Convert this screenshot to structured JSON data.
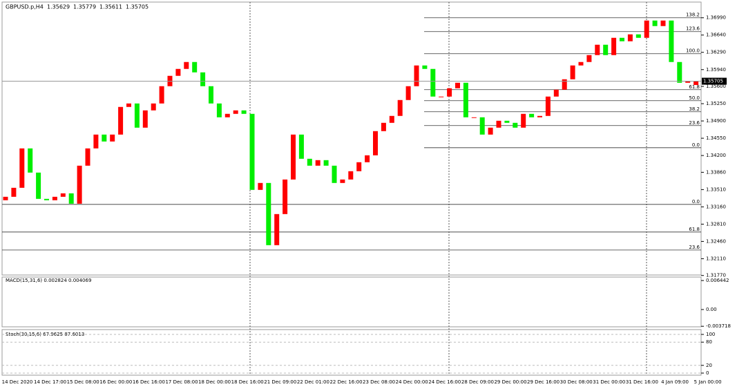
{
  "header": {
    "symbol": "GBPUSD.p,H4",
    "ohlc": [
      "1.35629",
      "1.35779",
      "1.35611",
      "1.35705"
    ]
  },
  "chart_data": {
    "type": "candlestick",
    "ylim": [
      1.3178,
      1.3735
    ],
    "yticks": [
      {
        "value": 1.3699,
        "label": "1.36990"
      },
      {
        "value": 1.3664,
        "label": "1.36640"
      },
      {
        "value": 1.3629,
        "label": "1.36290"
      },
      {
        "value": 1.3594,
        "label": "1.35940"
      },
      {
        "value": 1.356,
        "label": "1.35600"
      },
      {
        "value": 1.3525,
        "label": "1.35250"
      },
      {
        "value": 1.349,
        "label": "1.34900"
      },
      {
        "value": 1.3455,
        "label": "1.34550"
      },
      {
        "value": 1.342,
        "label": "1.34200"
      },
      {
        "value": 1.3386,
        "label": "1.33860"
      },
      {
        "value": 1.3351,
        "label": "1.33510"
      },
      {
        "value": 1.3316,
        "label": "1.33160"
      },
      {
        "value": 1.3281,
        "label": "1.32810"
      },
      {
        "value": 1.3246,
        "label": "1.32460"
      },
      {
        "value": 1.3211,
        "label": "1.32110"
      },
      {
        "value": 1.3177,
        "label": "1.31770"
      }
    ],
    "current_price": {
      "value": 1.35705,
      "label": "1.35705"
    },
    "up_color": "#ff0000",
    "down_color": "#00ee00",
    "open": [
      1.33294,
      1.33364,
      1.33546,
      1.34344,
      1.33854,
      1.33322,
      1.33294,
      1.33364,
      1.33434,
      1.33224,
      1.33994,
      1.34344,
      1.34624,
      1.34484,
      1.34624,
      1.35184,
      1.35254,
      1.34764,
      1.35114,
      1.35254,
      1.35604,
      1.35814,
      1.35954,
      1.36094,
      1.35884,
      1.35604,
      1.35254,
      1.34974,
      1.35044,
      1.35114,
      1.35044,
      1.33504,
      1.33644,
      1.32384,
      1.33014,
      1.33714,
      1.34624,
      1.34134,
      1.33994,
      1.34106,
      1.33994,
      1.33644,
      1.33714,
      1.33882,
      1.34064,
      1.34204,
      1.34694,
      1.34862,
      1.35002,
      1.35324,
      1.35604,
      1.36024,
      1.35954,
      1.35394,
      1.35394,
      1.35562,
      1.35674,
      1.34974,
      1.34974,
      1.34624,
      1.34764,
      1.34904,
      1.34862,
      1.34764,
      1.35044,
      1.34974,
      1.35002,
      1.35394,
      1.35534,
      1.35744,
      1.36024,
      1.36094,
      1.36234,
      1.36444,
      1.36234,
      1.36584,
      1.36514,
      1.36654,
      1.36584,
      1.36934,
      1.36822,
      1.36934,
      1.36094,
      1.35674,
      1.35629
    ],
    "close": [
      1.33364,
      1.33546,
      1.34344,
      1.33854,
      1.33322,
      1.33294,
      1.33364,
      1.33434,
      1.33224,
      1.33994,
      1.34344,
      1.34624,
      1.34484,
      1.34624,
      1.35184,
      1.35254,
      1.34764,
      1.35114,
      1.35254,
      1.35604,
      1.35814,
      1.35954,
      1.36094,
      1.35884,
      1.35604,
      1.35254,
      1.34974,
      1.35044,
      1.35114,
      1.35044,
      1.33504,
      1.33644,
      1.32384,
      1.33014,
      1.33714,
      1.34624,
      1.34134,
      1.33994,
      1.34106,
      1.33994,
      1.33644,
      1.33714,
      1.33882,
      1.34064,
      1.34204,
      1.34694,
      1.34862,
      1.35002,
      1.35324,
      1.35604,
      1.36024,
      1.35954,
      1.35394,
      1.35394,
      1.35562,
      1.35674,
      1.34974,
      1.34974,
      1.34624,
      1.34764,
      1.34904,
      1.34862,
      1.34764,
      1.35044,
      1.34974,
      1.35002,
      1.35394,
      1.35534,
      1.35744,
      1.36024,
      1.36094,
      1.36234,
      1.36444,
      1.36234,
      1.36584,
      1.36514,
      1.36654,
      1.36584,
      1.36934,
      1.36822,
      1.36934,
      1.36094,
      1.35674,
      1.35702,
      1.35705
    ],
    "fib_levels": [
      {
        "value": 1.3699,
        "label": "138.2"
      },
      {
        "value": 1.3671,
        "label": "123.6"
      },
      {
        "value": 1.36262,
        "label": "100.0"
      },
      {
        "value": 1.35534,
        "label": "61.8"
      },
      {
        "value": 1.3531,
        "label": "50.0"
      },
      {
        "value": 1.35086,
        "label": "38.2"
      },
      {
        "value": 1.34806,
        "label": "23.6"
      },
      {
        "value": 1.34358,
        "label": "0.0"
      },
      {
        "value": 1.3321,
        "label": "0.0"
      },
      {
        "value": 1.3265,
        "label": "61.8"
      },
      {
        "value": 1.32286,
        "label": "23.6"
      }
    ],
    "x_labels": [
      "14 Dec 2020",
      "14 Dec 17:00",
      "15 Dec 08:00",
      "16 Dec 00:00",
      "16 Dec 16:00",
      "17 Dec 08:00",
      "18 Dec 00:00",
      "18 Dec 16:00",
      "21 Dec 09:00",
      "22 Dec 01:00",
      "22 Dec 16:00",
      "23 Dec 08:00",
      "24 Dec 00:00",
      "24 Dec 16:00",
      "28 Dec 09:00",
      "29 Dec 00:00",
      "29 Dec 16:00",
      "30 Dec 08:00",
      "31 Dec 00:00",
      "31 Dec 16:00",
      "4 Jan 09:00",
      "5 Jan 00:00"
    ],
    "macd": {
      "label": "MACD(15,31,6) 0.002824 0.004069",
      "ylim": [
        -0.00384,
        0.00721
      ],
      "yticks": [
        0.006442,
        {
          "value": 0,
          "label": "0.00"
        },
        -0.003718
      ]
    },
    "stoch": {
      "label": "Stoch(30,15,6) 67.9625 87.6013",
      "ylim": [
        -5.4,
        112.5
      ],
      "yticks": [
        100,
        80,
        20,
        0
      ]
    }
  }
}
